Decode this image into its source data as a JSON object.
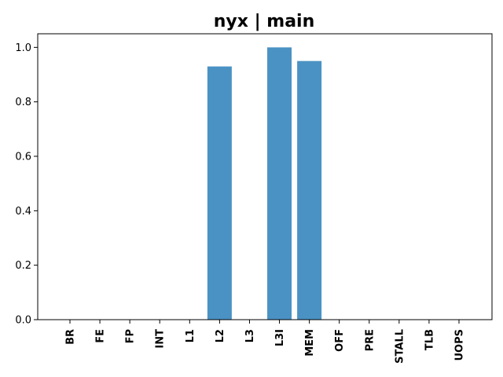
{
  "chart_data": {
    "type": "bar",
    "title": "nyx | main",
    "xlabel": "",
    "ylabel": "",
    "categories": [
      "BR",
      "FE",
      "FP",
      "INT",
      "L1",
      "L2",
      "L3",
      "L3I",
      "MEM",
      "OFF",
      "PRE",
      "STALL",
      "TLB",
      "UOPS"
    ],
    "values": [
      0,
      0,
      0,
      0,
      0,
      0.93,
      0,
      1.0,
      0.95,
      0,
      0,
      0,
      0,
      0
    ],
    "ylim": [
      0,
      1.05
    ],
    "yticks": [
      "0.0",
      "0.2",
      "0.4",
      "0.6",
      "0.8",
      "1.0"
    ],
    "grid": false,
    "bar_color": "#4a92c3"
  }
}
